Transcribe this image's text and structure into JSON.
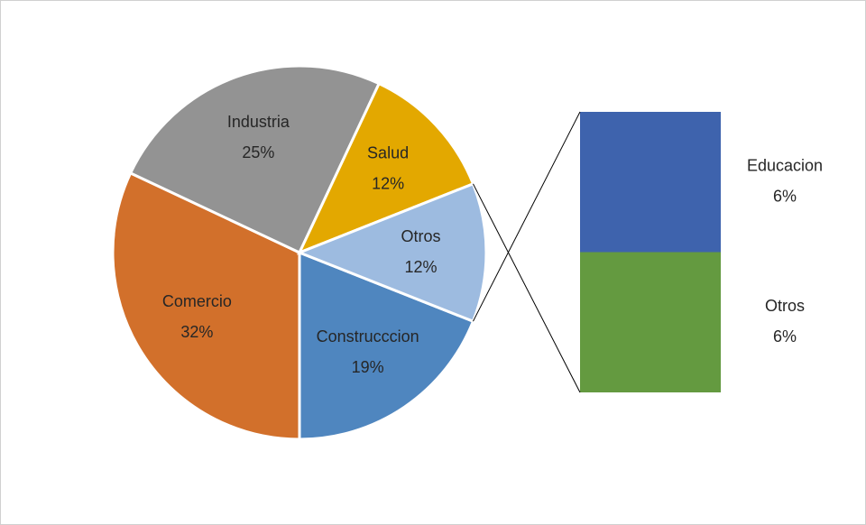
{
  "chart_data": {
    "type": "pie-of-bar",
    "categories": [
      "Construcccion",
      "Comercio",
      "Industria",
      "Salud",
      "Otros"
    ],
    "values": [
      19,
      32,
      25,
      12,
      12
    ],
    "value_labels": [
      "19%",
      "32%",
      "25%",
      "12%",
      "12%"
    ],
    "colors": [
      "#4f86bf",
      "#d2702b",
      "#939393",
      "#e3a800",
      "#9dbbe0"
    ],
    "bar": {
      "categories": [
        "Educacion",
        "Otros"
      ],
      "values": [
        6,
        6
      ],
      "value_labels": [
        "6%",
        "6%"
      ],
      "colors": [
        "#3e63ad",
        "#649a40"
      ]
    }
  }
}
